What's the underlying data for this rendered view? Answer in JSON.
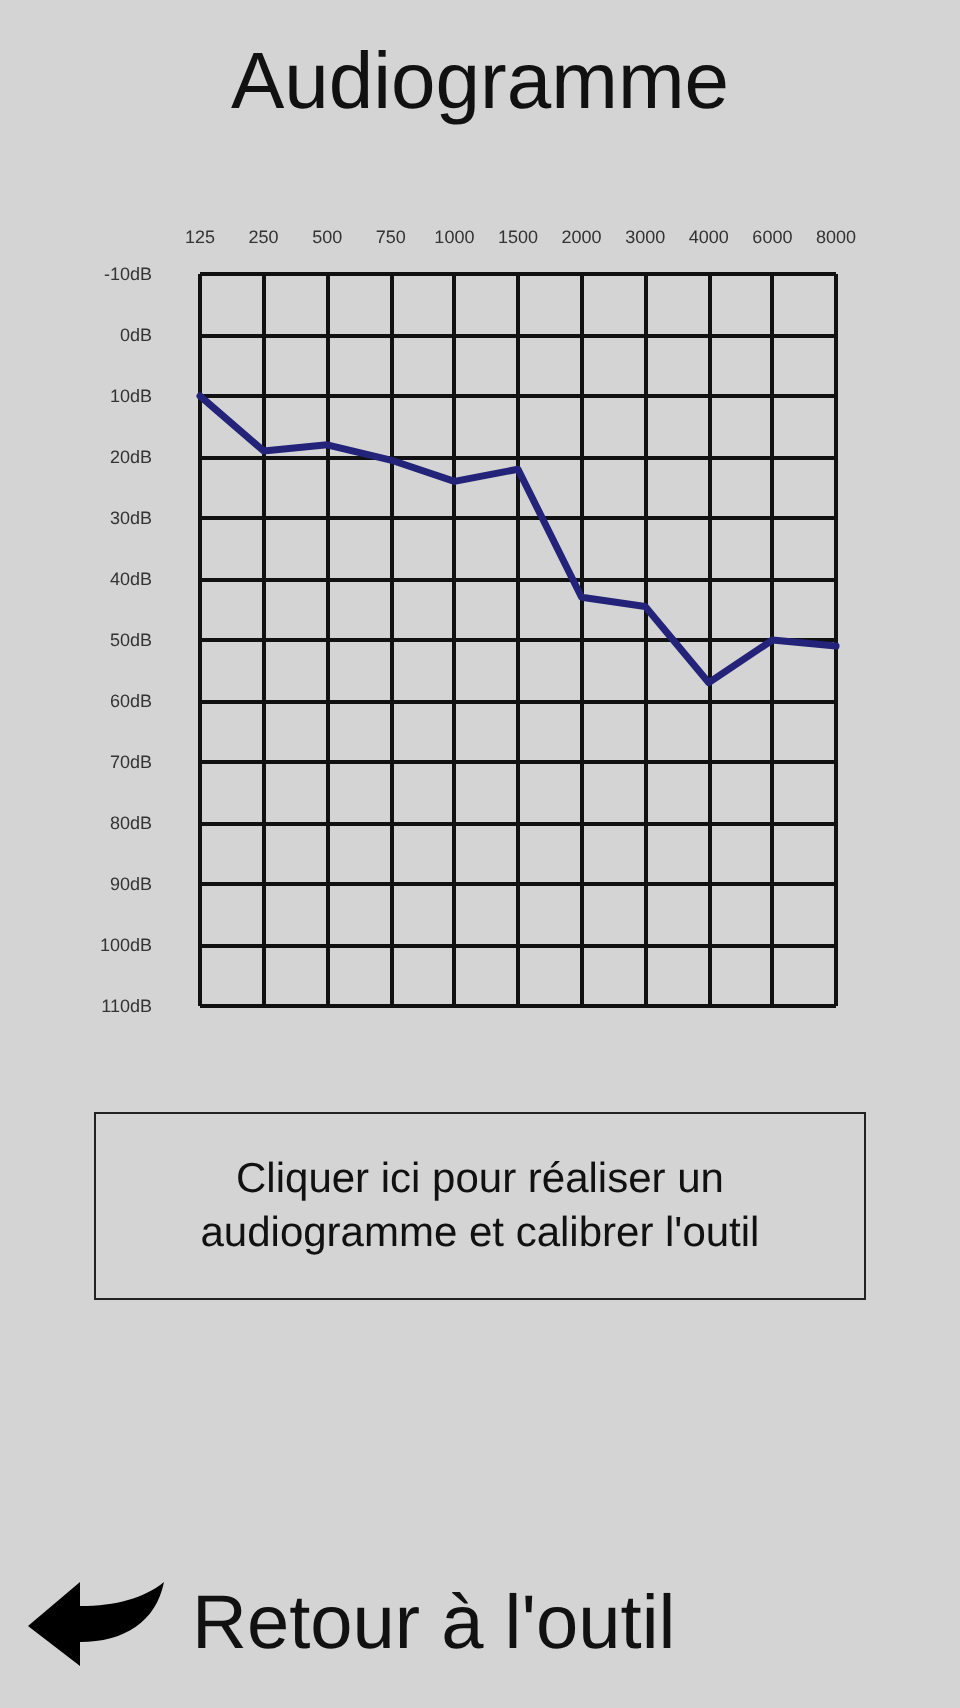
{
  "chart_data": {
    "type": "line",
    "title": "Audiogramme",
    "categories": [
      "125",
      "250",
      "500",
      "750",
      "1000",
      "1500",
      "2000",
      "3000",
      "4000",
      "6000",
      "8000"
    ],
    "series": [
      {
        "color": "#232379",
        "values": [
          10,
          19,
          18,
          20.5,
          24,
          22,
          43,
          44.5,
          57,
          50,
          51
        ]
      }
    ],
    "ylim": [
      110,
      -10
    ],
    "yticks": [
      {
        "value": -10,
        "label": "-10dB"
      },
      {
        "value": 0,
        "label": "0dB"
      },
      {
        "value": 10,
        "label": "10dB"
      },
      {
        "value": 20,
        "label": "20dB"
      },
      {
        "value": 30,
        "label": "30dB"
      },
      {
        "value": 40,
        "label": "40dB"
      },
      {
        "value": 50,
        "label": "50dB"
      },
      {
        "value": 60,
        "label": "60dB"
      },
      {
        "value": 70,
        "label": "70dB"
      },
      {
        "value": 80,
        "label": "80dB"
      },
      {
        "value": 90,
        "label": "90dB"
      },
      {
        "value": 100,
        "label": "100dB"
      },
      {
        "value": 110,
        "label": "110dB"
      }
    ],
    "grid": true,
    "marker": "none",
    "line_style": "solid",
    "annotations": [
      "Cliquer ici pour réaliser un audiogramme et calibrer l'outil",
      "Retour à l'outil"
    ]
  }
}
